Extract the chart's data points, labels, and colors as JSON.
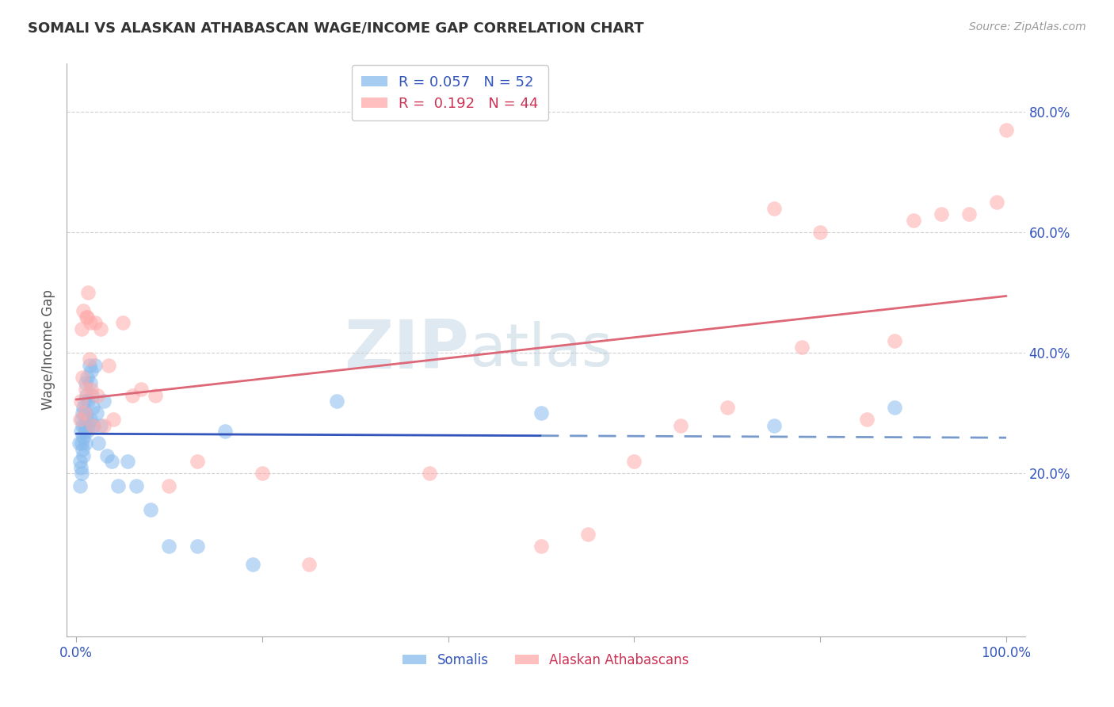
{
  "title": "SOMALI VS ALASKAN ATHABASCAN WAGE/INCOME GAP CORRELATION CHART",
  "source": "Source: ZipAtlas.com",
  "ylabel": "Wage/Income Gap",
  "xlim": [
    -0.01,
    1.02
  ],
  "ylim": [
    -0.07,
    0.88
  ],
  "xtick_positions": [
    0.0,
    0.2,
    0.4,
    0.6,
    0.8,
    1.0
  ],
  "xticklabels": [
    "0.0%",
    "",
    "",
    "",
    "",
    "100.0%"
  ],
  "ytick_positions": [
    0.2,
    0.4,
    0.6,
    0.8
  ],
  "yticklabels": [
    "20.0%",
    "40.0%",
    "60.0%",
    "80.0%"
  ],
  "grid_color": "#cccccc",
  "background_color": "#ffffff",
  "somali_color": "#88BBEE",
  "athabascan_color": "#FFAAAA",
  "somali_R": 0.057,
  "somali_N": 52,
  "athabascan_R": 0.192,
  "athabascan_N": 44,
  "trend_blue_color": "#3355BB",
  "trend_pink_color": "#DD6677",
  "trend_blue_dash_color": "#7799CC",
  "watermark_zip": "ZIP",
  "watermark_atlas": "atlas",
  "somali_x": [
    0.003,
    0.004,
    0.004,
    0.005,
    0.005,
    0.006,
    0.006,
    0.006,
    0.007,
    0.007,
    0.007,
    0.008,
    0.008,
    0.008,
    0.009,
    0.009,
    0.009,
    0.01,
    0.01,
    0.01,
    0.011,
    0.011,
    0.012,
    0.012,
    0.013,
    0.013,
    0.014,
    0.015,
    0.015,
    0.016,
    0.017,
    0.018,
    0.019,
    0.02,
    0.022,
    0.024,
    0.026,
    0.03,
    0.033,
    0.038,
    0.045,
    0.055,
    0.065,
    0.08,
    0.1,
    0.13,
    0.16,
    0.19,
    0.28,
    0.5,
    0.75,
    0.88
  ],
  "somali_y": [
    0.25,
    0.22,
    0.18,
    0.27,
    0.21,
    0.29,
    0.25,
    0.2,
    0.28,
    0.24,
    0.3,
    0.26,
    0.31,
    0.23,
    0.28,
    0.32,
    0.27,
    0.3,
    0.25,
    0.35,
    0.33,
    0.29,
    0.36,
    0.27,
    0.32,
    0.28,
    0.38,
    0.35,
    0.29,
    0.37,
    0.33,
    0.31,
    0.28,
    0.38,
    0.3,
    0.25,
    0.28,
    0.32,
    0.23,
    0.22,
    0.18,
    0.22,
    0.18,
    0.14,
    0.08,
    0.08,
    0.27,
    0.05,
    0.32,
    0.3,
    0.28,
    0.31
  ],
  "athabascan_x": [
    0.004,
    0.005,
    0.006,
    0.007,
    0.008,
    0.009,
    0.01,
    0.011,
    0.012,
    0.013,
    0.014,
    0.015,
    0.016,
    0.018,
    0.02,
    0.023,
    0.026,
    0.03,
    0.035,
    0.04,
    0.05,
    0.06,
    0.07,
    0.085,
    0.1,
    0.13,
    0.2,
    0.25,
    0.38,
    0.5,
    0.55,
    0.6,
    0.65,
    0.7,
    0.75,
    0.78,
    0.8,
    0.85,
    0.88,
    0.9,
    0.93,
    0.96,
    0.99,
    1.0
  ],
  "athabascan_y": [
    0.29,
    0.32,
    0.44,
    0.36,
    0.47,
    0.3,
    0.34,
    0.46,
    0.46,
    0.5,
    0.39,
    0.45,
    0.34,
    0.28,
    0.45,
    0.33,
    0.44,
    0.28,
    0.38,
    0.29,
    0.45,
    0.33,
    0.34,
    0.33,
    0.18,
    0.22,
    0.2,
    0.05,
    0.2,
    0.08,
    0.1,
    0.22,
    0.28,
    0.31,
    0.64,
    0.41,
    0.6,
    0.29,
    0.42,
    0.62,
    0.63,
    0.63,
    0.65,
    0.77
  ]
}
